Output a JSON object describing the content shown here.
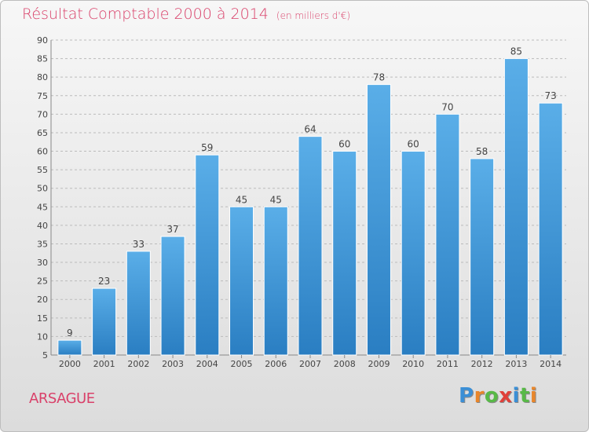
{
  "header": {
    "title": "Résultat Comptable 2000 à 2014",
    "unit": "(en milliers d'€)"
  },
  "footer": {
    "commune": "ARSAGUE",
    "brand": "Proxiti",
    "brand_letters": [
      {
        "ch": "P",
        "color": "#3b8fd6"
      },
      {
        "ch": "r",
        "color": "#e8862b"
      },
      {
        "ch": "o",
        "color": "#58b947"
      },
      {
        "ch": "x",
        "color": "#e0403a"
      },
      {
        "ch": "i",
        "color": "#3b8fd6"
      },
      {
        "ch": "t",
        "color": "#58b947"
      },
      {
        "ch": "i",
        "color": "#e8862b"
      }
    ]
  },
  "colors": {
    "title": "#d9416a",
    "bar_top": "#5aaee8",
    "bar_bottom": "#2a7ec2",
    "grid": "#bbbbbb",
    "axis_text": "#444444"
  },
  "chart_data": {
    "type": "bar",
    "title": "Résultat Comptable 2000 à 2014",
    "subtitle": "(en milliers d'€)",
    "categories": [
      "2000",
      "2001",
      "2002",
      "2003",
      "2004",
      "2005",
      "2006",
      "2007",
      "2008",
      "2009",
      "2010",
      "2011",
      "2012",
      "2013",
      "2014"
    ],
    "values": [
      9,
      23,
      33,
      37,
      59,
      45,
      45,
      64,
      60,
      78,
      60,
      70,
      58,
      85,
      73
    ],
    "ylim": [
      5,
      90
    ],
    "yticks": [
      5,
      10,
      15,
      20,
      25,
      30,
      35,
      40,
      45,
      50,
      55,
      60,
      65,
      70,
      75,
      80,
      85,
      90
    ],
    "grid": true,
    "grid_style": "dashed-horizontal",
    "data_labels": true
  }
}
